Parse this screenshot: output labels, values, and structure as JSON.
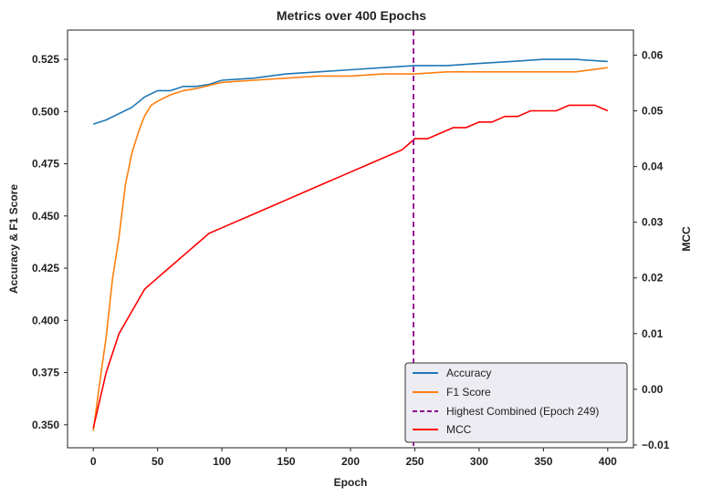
{
  "chart_data": {
    "type": "line",
    "title": "Metrics over 400 Epochs",
    "xlabel": "Epoch",
    "ylabel_left": "Accuracy & F1 Score",
    "ylabel_right": "MCC",
    "xlim": [
      -20,
      420
    ],
    "ylim_left": [
      0.339,
      0.539
    ],
    "ylim_right": [
      -0.0105,
      0.0645
    ],
    "xticks": [
      "0",
      "50",
      "100",
      "150",
      "200",
      "250",
      "300",
      "350",
      "400"
    ],
    "yticks_left": [
      "0.350",
      "0.375",
      "0.400",
      "0.425",
      "0.450",
      "0.475",
      "0.500",
      "0.525"
    ],
    "yticks_right": [
      "−0.01",
      "0.00",
      "0.01",
      "0.02",
      "0.03",
      "0.04",
      "0.05",
      "0.06"
    ],
    "grid": false,
    "legend_position": "lower-right",
    "series": [
      {
        "name": "Accuracy",
        "axis": "left",
        "color": "#1f77b4",
        "x": [
          0,
          10,
          20,
          30,
          40,
          50,
          60,
          70,
          80,
          90,
          100,
          125,
          150,
          175,
          200,
          225,
          250,
          275,
          300,
          325,
          350,
          375,
          400
        ],
        "y": [
          0.494,
          0.496,
          0.499,
          0.502,
          0.507,
          0.51,
          0.51,
          0.512,
          0.512,
          0.513,
          0.515,
          0.516,
          0.518,
          0.519,
          0.52,
          0.521,
          0.522,
          0.522,
          0.523,
          0.524,
          0.525,
          0.525,
          0.524
        ]
      },
      {
        "name": "F1 Score",
        "axis": "left",
        "color": "#ff7f0e",
        "x": [
          0,
          5,
          10,
          15,
          20,
          25,
          30,
          35,
          40,
          45,
          50,
          60,
          70,
          80,
          100,
          125,
          150,
          175,
          200,
          225,
          250,
          275,
          300,
          325,
          350,
          375,
          400
        ],
        "y": [
          0.347,
          0.37,
          0.392,
          0.42,
          0.44,
          0.465,
          0.48,
          0.49,
          0.498,
          0.503,
          0.505,
          0.508,
          0.51,
          0.511,
          0.514,
          0.515,
          0.516,
          0.517,
          0.517,
          0.518,
          0.518,
          0.519,
          0.519,
          0.519,
          0.519,
          0.519,
          0.521
        ]
      },
      {
        "name": "MCC",
        "axis": "right",
        "color": "#ff0000",
        "x": [
          0,
          10,
          20,
          30,
          40,
          50,
          60,
          70,
          80,
          90,
          100,
          110,
          120,
          130,
          140,
          150,
          160,
          170,
          180,
          190,
          200,
          210,
          220,
          230,
          240,
          250,
          260,
          270,
          280,
          290,
          300,
          310,
          320,
          330,
          340,
          350,
          360,
          370,
          380,
          390,
          400
        ],
        "y": [
          -0.007,
          0.003,
          0.01,
          0.014,
          0.018,
          0.02,
          0.022,
          0.024,
          0.026,
          0.028,
          0.029,
          0.03,
          0.031,
          0.032,
          0.033,
          0.034,
          0.035,
          0.036,
          0.037,
          0.038,
          0.039,
          0.04,
          0.041,
          0.042,
          0.043,
          0.045,
          0.045,
          0.046,
          0.047,
          0.047,
          0.048,
          0.048,
          0.049,
          0.049,
          0.05,
          0.05,
          0.05,
          0.051,
          0.051,
          0.051,
          0.05
        ]
      }
    ],
    "vline": {
      "x": 249,
      "label": "Highest Combined (Epoch 249)",
      "color": "#8b008b"
    }
  }
}
